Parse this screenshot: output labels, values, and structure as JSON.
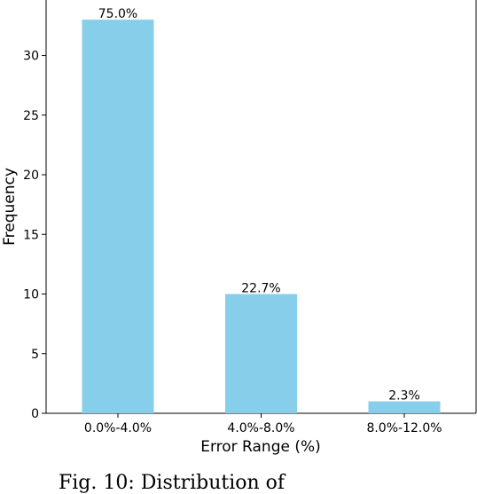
{
  "chart_data": {
    "type": "bar",
    "categories": [
      "0.0%-4.0%",
      "4.0%-8.0%",
      "8.0%-12.0%"
    ],
    "values": [
      33,
      10,
      1
    ],
    "data_labels": [
      "75.0%",
      "22.7%",
      "2.3%"
    ],
    "title": "",
    "xlabel": "Error Range (%)",
    "ylabel": "Frequency",
    "ylim": [
      0,
      34.65
    ],
    "yticks": [
      0,
      5,
      10,
      15,
      20,
      25,
      30
    ],
    "bar_color": "#87ceeb",
    "grid": false,
    "legend": "none"
  },
  "caption_text": "Fig. 10: Distribution of"
}
